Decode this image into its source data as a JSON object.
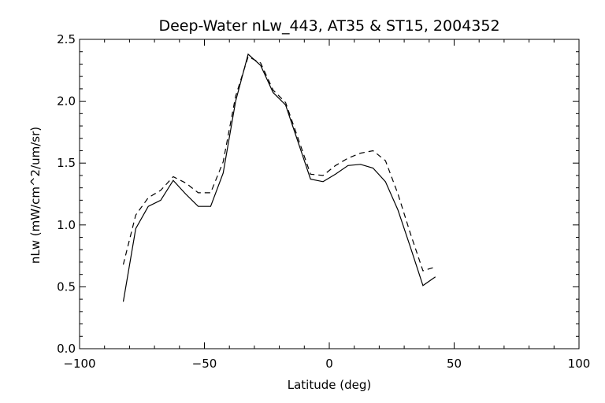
{
  "chart_data": {
    "type": "line",
    "title": "Deep-Water nLw_443, AT35 & ST15, 2004352",
    "xlabel": "Latitude (deg)",
    "ylabel": "nLw (mW/cm^2/um/sr)",
    "xlim": [
      -100,
      100
    ],
    "ylim": [
      0,
      2.5
    ],
    "xticks": [
      -100,
      -50,
      0,
      50,
      100
    ],
    "xtick_labels": [
      "−100",
      "−50",
      "0",
      "50",
      "100"
    ],
    "yticks": [
      0,
      0.5,
      1.0,
      1.5,
      2.0,
      2.5
    ],
    "ytick_labels": [
      "0.0",
      "0.5",
      "1.0",
      "1.5",
      "2.0",
      "2.5"
    ],
    "grid": false,
    "series": [
      {
        "style": "solid",
        "color": "#000000",
        "x": [
          -82.5,
          -77.5,
          -72.5,
          -67.5,
          -62.5,
          -57.5,
          -52.5,
          -47.5,
          -42.5,
          -37.5,
          -32.5,
          -27.5,
          -22.5,
          -17.5,
          -12.5,
          -7.5,
          -2.5,
          2.5,
          7.5,
          12.5,
          17.5,
          22.5,
          27.5,
          32.5,
          37.5,
          42.5
        ],
        "y": [
          0.38,
          0.97,
          1.15,
          1.2,
          1.36,
          1.25,
          1.15,
          1.15,
          1.42,
          2.0,
          2.38,
          2.29,
          2.07,
          1.97,
          1.67,
          1.37,
          1.35,
          1.41,
          1.48,
          1.49,
          1.46,
          1.35,
          1.12,
          0.82,
          0.51,
          0.58
        ]
      },
      {
        "style": "dashed",
        "color": "#000000",
        "x": [
          -82.5,
          -77.5,
          -72.5,
          -67.5,
          -62.5,
          -57.5,
          -52.5,
          -47.5,
          -42.5,
          -37.5,
          -32.5,
          -27.5,
          -22.5,
          -17.5,
          -12.5,
          -7.5,
          -2.5,
          2.5,
          7.5,
          12.5,
          17.5,
          22.5,
          27.5,
          32.5,
          37.5,
          42.5
        ],
        "y": [
          0.68,
          1.08,
          1.22,
          1.28,
          1.39,
          1.34,
          1.26,
          1.26,
          1.51,
          2.04,
          2.36,
          2.31,
          2.09,
          1.99,
          1.7,
          1.41,
          1.4,
          1.48,
          1.54,
          1.58,
          1.6,
          1.52,
          1.25,
          0.93,
          0.63,
          0.66
        ]
      }
    ]
  }
}
